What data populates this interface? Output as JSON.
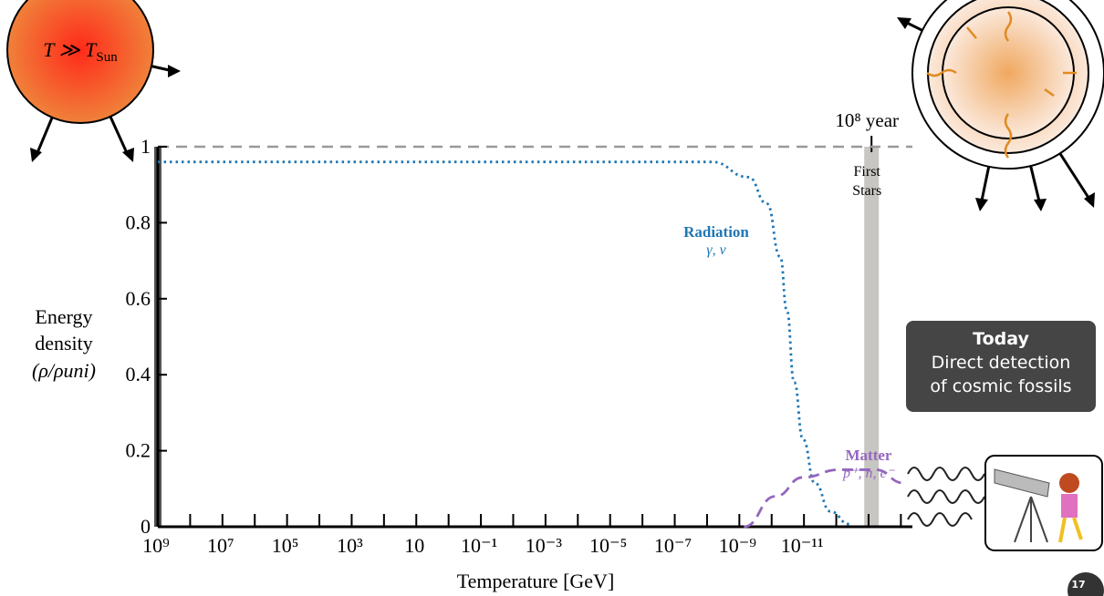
{
  "chart_data": {
    "type": "line",
    "x_label": "Temperature [GeV]",
    "y_label_lines": [
      "Energy",
      "density",
      "(ρ/ρuni)"
    ],
    "xscale": "log",
    "xlim": [
      1000000000.0,
      4.4e-15
    ],
    "xticks": [
      {
        "value": 1000000000.0,
        "label": "10⁹"
      },
      {
        "value": 10000000.0,
        "label": "10⁷"
      },
      {
        "value": 100000.0,
        "label": "10⁵"
      },
      {
        "value": 1000.0,
        "label": "10³"
      },
      10,
      {
        "value": 0.1,
        "label": "10⁻¹"
      },
      {
        "value": 0.001,
        "label": "10⁻³"
      },
      {
        "value": 1e-05,
        "label": "10⁻⁵"
      },
      {
        "value": 1e-07,
        "label": "10⁻⁷"
      },
      {
        "value": 1e-09,
        "label": "10⁻⁹"
      },
      {
        "value": 1e-11,
        "label": "10⁻¹¹"
      }
    ],
    "xminorticks": [
      100000000.0,
      1000000.0,
      10000.0,
      100,
      1,
      0.01,
      0.0001,
      1e-06,
      1e-08,
      1e-10,
      1e-12,
      1e-13,
      1e-14
    ],
    "ylim": [
      0,
      1
    ],
    "yticks": [
      0,
      0.2,
      0.4,
      0.6,
      0.8,
      1
    ],
    "hline": {
      "value": 1,
      "color": "#999999"
    },
    "series": [
      {
        "name": "Radiation",
        "sublabel": "γ, ν",
        "color": "#1f77b4",
        "style": "dotted",
        "x": [
          1000000000.0,
          7.1e-09,
          5.2e-10,
          1.4e-10,
          5.4e-11,
          3.4e-11,
          2e-11,
          1.07e-11,
          4.6e-12,
          1.5e-12,
          4e-13
        ],
        "values": [
          0.96,
          0.96,
          0.92,
          0.85,
          0.71,
          0.57,
          0.38,
          0.23,
          0.115,
          0.04,
          0.007
        ]
      },
      {
        "name": "Matter",
        "sublabel": "p⁺, n, e⁻",
        "color": "#9467bd",
        "style": "dashed",
        "x": [
          7.2e-10,
          7.6e-11,
          1.07e-11,
          8e-13,
          5.9e-14,
          8.3e-15
        ],
        "values": [
          0,
          0.08,
          0.13,
          0.15,
          0.15,
          0.115
        ]
      }
    ],
    "band": {
      "x": 8.1e-14,
      "color": "#c8c6c2",
      "top_label": "10⁸ year",
      "label_lines": [
        "First",
        "Stars"
      ]
    }
  },
  "sun_label": [
    "T ≫ T",
    "Sun"
  ],
  "today_box": {
    "title": "Today",
    "lines": [
      "Direct detection",
      "of cosmic fossils"
    ]
  },
  "page_number": "17"
}
